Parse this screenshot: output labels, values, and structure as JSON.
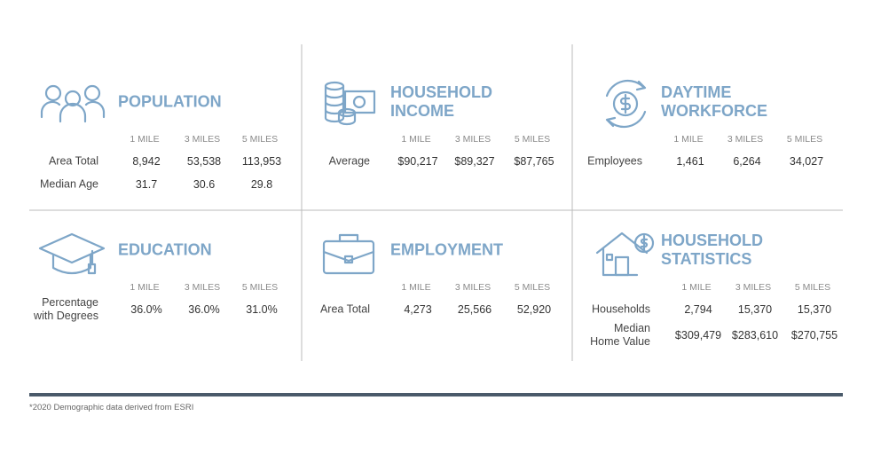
{
  "panels": [
    {
      "title": "POPULATION",
      "columns": [
        "1 MILE",
        "3 MILES",
        "5 MILES"
      ],
      "rows": [
        {
          "label": "Area Total",
          "values": [
            "8,942",
            "53,538",
            "113,953"
          ]
        },
        {
          "label": "Median Age",
          "values": [
            "31.7",
            "30.6",
            "29.8"
          ]
        }
      ]
    },
    {
      "title": "HOUSEHOLD\nINCOME",
      "columns": [
        "1 MILE",
        "3 MILES",
        "5 MILES"
      ],
      "rows": [
        {
          "label": "Average",
          "values": [
            "$90,217",
            "$89,327",
            "$87,765"
          ]
        }
      ]
    },
    {
      "title": "DAYTIME\nWORKFORCE",
      "columns": [
        "1 MILE",
        "3 MILES",
        "5 MILES"
      ],
      "rows": [
        {
          "label": "Employees",
          "values": [
            "1,461",
            "6,264",
            "34,027"
          ]
        }
      ]
    },
    {
      "title": "EDUCATION",
      "columns": [
        "1 MILE",
        "3 MILES",
        "5 MILES"
      ],
      "rows": [
        {
          "label": "Percentage\nwith Degrees",
          "values": [
            "36.0%",
            "36.0%",
            "31.0%"
          ]
        }
      ]
    },
    {
      "title": "EMPLOYMENT",
      "columns": [
        "1 MILE",
        "3 MILES",
        "5 MILES"
      ],
      "rows": [
        {
          "label": "Area Total",
          "values": [
            "4,273",
            "25,566",
            "52,920"
          ]
        }
      ]
    },
    {
      "title": "HOUSEHOLD\nSTATISTICS",
      "columns": [
        "1 MILE",
        "3 MILES",
        "5 MILES"
      ],
      "rows": [
        {
          "label": "Households",
          "values": [
            "2,794",
            "15,370",
            "15,370"
          ]
        },
        {
          "label": "Median\nHome Value",
          "values": [
            "$309,479",
            "$283,610",
            "$270,755"
          ]
        }
      ]
    }
  ],
  "footnote": "*2020 Demographic data derived from ESRI"
}
